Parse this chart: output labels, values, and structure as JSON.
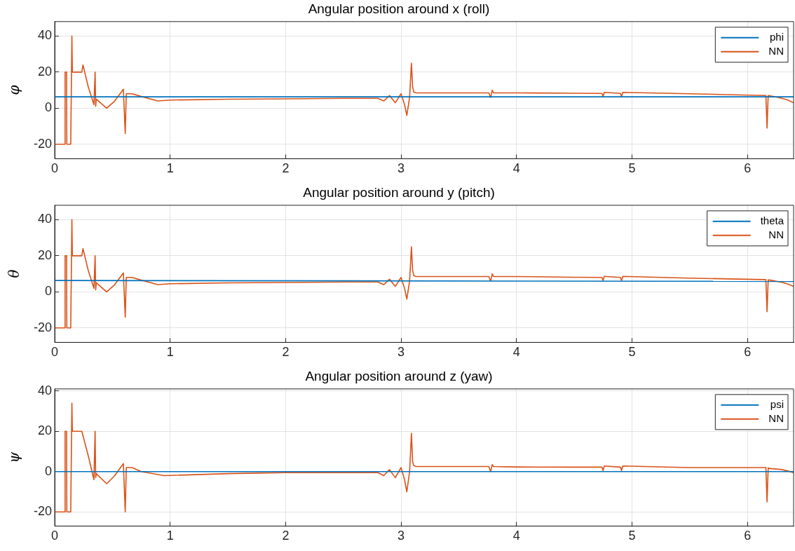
{
  "chart_data": [
    {
      "type": "line",
      "title": "Angular position around x (roll)",
      "ylabel": "φ",
      "xlim": [
        0,
        6.4
      ],
      "xticks": [
        0,
        1,
        2,
        3,
        4,
        5,
        6
      ],
      "ylim": [
        -28,
        48
      ],
      "yticks": [
        -20,
        0,
        20,
        40
      ],
      "grid": true,
      "legend": "top right",
      "marker": "none",
      "line_style": "solid",
      "series": [
        {
          "name": "phi",
          "color": "#0072bd",
          "x": [
            0,
            6.4
          ],
          "values": [
            6.3,
            6.3
          ]
        },
        {
          "name": "NN",
          "color": "#d95319",
          "x": [
            0.002,
            0.088,
            0.09,
            0.103,
            0.105,
            0.139,
            0.149,
            0.153,
            0.235,
            0.245,
            0.29,
            0.34,
            0.35,
            0.355,
            0.36,
            0.45,
            0.52,
            0.595,
            0.611,
            0.62,
            0.67,
            0.75,
            0.893,
            1.0,
            1.5,
            2.0,
            2.5,
            2.8,
            2.85,
            2.9,
            2.95,
            3.0,
            3.03,
            3.05,
            3.074,
            3.09,
            3.1,
            3.11,
            3.13,
            3.5,
            3.76,
            3.776,
            3.79,
            3.8,
            4.0,
            4.5,
            4.74,
            4.75,
            4.76,
            4.9,
            4.91,
            4.92,
            5.5,
            6.15,
            6.16,
            6.17,
            6.18,
            6.2,
            6.3,
            6.35,
            6.4
          ],
          "values": [
            -20,
            -20,
            20,
            20,
            -20,
            -20,
            40,
            20,
            20,
            24,
            12,
            2,
            20,
            1,
            5,
            0,
            4,
            10.5,
            -14,
            8,
            8,
            6.5,
            4,
            4.5,
            5,
            5.2,
            5.5,
            5.5,
            4,
            7,
            3,
            8,
            2,
            -4,
            6,
            25,
            12,
            9,
            8.5,
            8.5,
            8.5,
            6,
            10,
            8.5,
            8.5,
            8.3,
            8.2,
            6.5,
            8.8,
            8.2,
            6.5,
            8.8,
            8,
            7,
            7,
            -11,
            7,
            6.8,
            5.5,
            4.5,
            3
          ]
        }
      ]
    },
    {
      "type": "line",
      "title": "Angular position around y (pitch)",
      "ylabel": "θ",
      "xlim": [
        0,
        6.4
      ],
      "xticks": [
        0,
        1,
        2,
        3,
        4,
        5,
        6
      ],
      "ylim": [
        -28,
        48
      ],
      "yticks": [
        -20,
        0,
        20,
        40
      ],
      "grid": true,
      "legend": "top right",
      "marker": "none",
      "line_style": "solid",
      "series": [
        {
          "name": "theta",
          "color": "#0072bd",
          "x": [
            0,
            6.4
          ],
          "values": [
            6.3,
            5.8
          ]
        },
        {
          "name": "NN",
          "color": "#d95319",
          "x": [
            0.002,
            0.088,
            0.09,
            0.103,
            0.105,
            0.139,
            0.149,
            0.153,
            0.235,
            0.245,
            0.29,
            0.34,
            0.35,
            0.355,
            0.36,
            0.45,
            0.52,
            0.595,
            0.611,
            0.62,
            0.67,
            0.75,
            0.893,
            1.0,
            1.5,
            2.0,
            2.5,
            2.8,
            2.85,
            2.9,
            2.95,
            3.0,
            3.03,
            3.05,
            3.074,
            3.09,
            3.1,
            3.11,
            3.13,
            3.5,
            3.76,
            3.776,
            3.79,
            3.8,
            4.0,
            4.5,
            4.74,
            4.75,
            4.76,
            4.9,
            4.91,
            4.92,
            5.5,
            6.15,
            6.16,
            6.17,
            6.18,
            6.2,
            6.3,
            6.35,
            6.4
          ],
          "values": [
            -20,
            -20,
            20,
            20,
            -20,
            -20,
            40,
            20,
            20,
            24,
            12,
            2,
            20,
            1,
            5,
            0,
            4,
            10.5,
            -14,
            8,
            8,
            6.5,
            4,
            4.5,
            5,
            5.2,
            5.5,
            5.5,
            4,
            7,
            3,
            8,
            2,
            -4,
            6,
            25,
            12,
            9,
            8.5,
            8.5,
            8.5,
            6,
            10,
            8.5,
            8.5,
            8.1,
            8,
            6.3,
            8.6,
            8,
            6.3,
            8.6,
            7.6,
            6.8,
            6.8,
            -11,
            6.6,
            6.5,
            5.3,
            4.3,
            3
          ]
        }
      ]
    },
    {
      "type": "line",
      "title": "Angular position around z (yaw)",
      "ylabel": "ψ",
      "xlim": [
        0,
        6.4
      ],
      "xticks": [
        0,
        1,
        2,
        3,
        4,
        5,
        6
      ],
      "ylim": [
        -27,
        41
      ],
      "yticks": [
        -20,
        0,
        20,
        40
      ],
      "grid": true,
      "legend": "top right",
      "marker": "none",
      "line_style": "solid",
      "series": [
        {
          "name": "psi",
          "color": "#0072bd",
          "x": [
            0,
            6.4
          ],
          "values": [
            0,
            0
          ]
        },
        {
          "name": "NN",
          "color": "#d95319",
          "x": [
            0.002,
            0.088,
            0.09,
            0.103,
            0.105,
            0.139,
            0.149,
            0.153,
            0.235,
            0.29,
            0.34,
            0.35,
            0.355,
            0.36,
            0.45,
            0.52,
            0.595,
            0.611,
            0.62,
            0.67,
            0.75,
            0.95,
            1.5,
            2.0,
            2.5,
            2.8,
            2.85,
            2.9,
            2.95,
            3.0,
            3.03,
            3.05,
            3.074,
            3.09,
            3.1,
            3.11,
            3.13,
            3.5,
            3.76,
            3.776,
            3.79,
            3.8,
            4.0,
            4.5,
            4.74,
            4.75,
            4.76,
            4.9,
            4.91,
            4.92,
            5.5,
            6.15,
            6.16,
            6.17,
            6.18,
            6.2,
            6.3,
            6.35,
            6.4
          ],
          "values": [
            -20,
            -20,
            20,
            20,
            -20,
            -20,
            34,
            20,
            20,
            8,
            -4,
            20,
            -3,
            -1,
            -6,
            -2,
            4,
            -20,
            2,
            2,
            0,
            -2,
            -1,
            -0.5,
            -0.5,
            -0.5,
            -2,
            1,
            -3,
            2,
            -4,
            -10,
            0,
            19,
            5,
            3,
            2.5,
            2.5,
            2.5,
            0,
            3.5,
            2.5,
            2.3,
            2.2,
            2.2,
            0.5,
            2.8,
            2.2,
            0.5,
            2.8,
            2,
            2,
            2,
            -15,
            1.8,
            1.5,
            1,
            0.3,
            -0.5
          ]
        }
      ]
    }
  ]
}
